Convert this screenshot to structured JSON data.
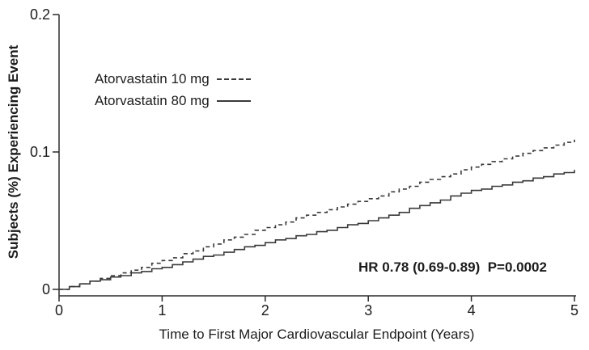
{
  "chart_data": {
    "type": "line",
    "subtype": "kaplan-meier-step",
    "title": "",
    "xlabel": "Time to First Major Cardiovascular Endpoint (Years)",
    "ylabel": "Subjects (%) Experiencing Event",
    "xlim": [
      0,
      5
    ],
    "ylim": [
      0,
      0.2
    ],
    "x_ticks": [
      {
        "v": 0,
        "label": "0"
      },
      {
        "v": 1,
        "label": "1"
      },
      {
        "v": 2,
        "label": "2"
      },
      {
        "v": 3,
        "label": "3"
      },
      {
        "v": 4,
        "label": "4"
      },
      {
        "v": 5,
        "label": "5"
      }
    ],
    "y_ticks": [
      {
        "v": 0,
        "label": "0"
      },
      {
        "v": 0.1,
        "label": "0.1"
      },
      {
        "v": 0.2,
        "label": "0.2"
      }
    ],
    "grid": false,
    "legend_position": "inside-upper-left",
    "annotation": "HR 0.78 (0.69-0.89)  P=0.0002",
    "colors": {
      "line": "#3a3a3a",
      "axis": "#2b2b2b",
      "text": "#1c1c1c",
      "background": "#ffffff"
    },
    "x": [
      0,
      0.1,
      0.2,
      0.3,
      0.4,
      0.5,
      0.6,
      0.7,
      0.8,
      0.9,
      1.0,
      1.1,
      1.2,
      1.3,
      1.4,
      1.5,
      1.6,
      1.7,
      1.8,
      1.9,
      2.0,
      2.1,
      2.2,
      2.3,
      2.4,
      2.5,
      2.6,
      2.7,
      2.8,
      2.9,
      3.0,
      3.1,
      3.2,
      3.3,
      3.4,
      3.5,
      3.6,
      3.7,
      3.8,
      3.9,
      4.0,
      4.1,
      4.2,
      4.3,
      4.4,
      4.5,
      4.6,
      4.7,
      4.8,
      4.9,
      5.0
    ],
    "series": [
      {
        "name": "Atorvastatin 10 mg",
        "style": "dashed",
        "values": [
          0.0,
          0.002,
          0.004,
          0.006,
          0.008,
          0.01,
          0.012,
          0.014,
          0.016,
          0.019,
          0.021,
          0.023,
          0.026,
          0.028,
          0.031,
          0.033,
          0.036,
          0.038,
          0.04,
          0.043,
          0.045,
          0.047,
          0.049,
          0.052,
          0.054,
          0.056,
          0.058,
          0.06,
          0.062,
          0.064,
          0.066,
          0.068,
          0.071,
          0.073,
          0.075,
          0.078,
          0.08,
          0.082,
          0.084,
          0.087,
          0.089,
          0.091,
          0.093,
          0.095,
          0.097,
          0.099,
          0.101,
          0.103,
          0.105,
          0.107,
          0.109
        ]
      },
      {
        "name": "Atorvastatin 80 mg",
        "style": "solid",
        "values": [
          0.0,
          0.002,
          0.004,
          0.006,
          0.007,
          0.009,
          0.01,
          0.012,
          0.013,
          0.015,
          0.016,
          0.018,
          0.02,
          0.022,
          0.024,
          0.025,
          0.027,
          0.029,
          0.031,
          0.032,
          0.034,
          0.036,
          0.037,
          0.039,
          0.04,
          0.042,
          0.043,
          0.045,
          0.047,
          0.048,
          0.05,
          0.052,
          0.054,
          0.056,
          0.059,
          0.061,
          0.063,
          0.065,
          0.068,
          0.07,
          0.072,
          0.073,
          0.075,
          0.076,
          0.078,
          0.079,
          0.081,
          0.082,
          0.084,
          0.085,
          0.087
        ]
      }
    ]
  }
}
